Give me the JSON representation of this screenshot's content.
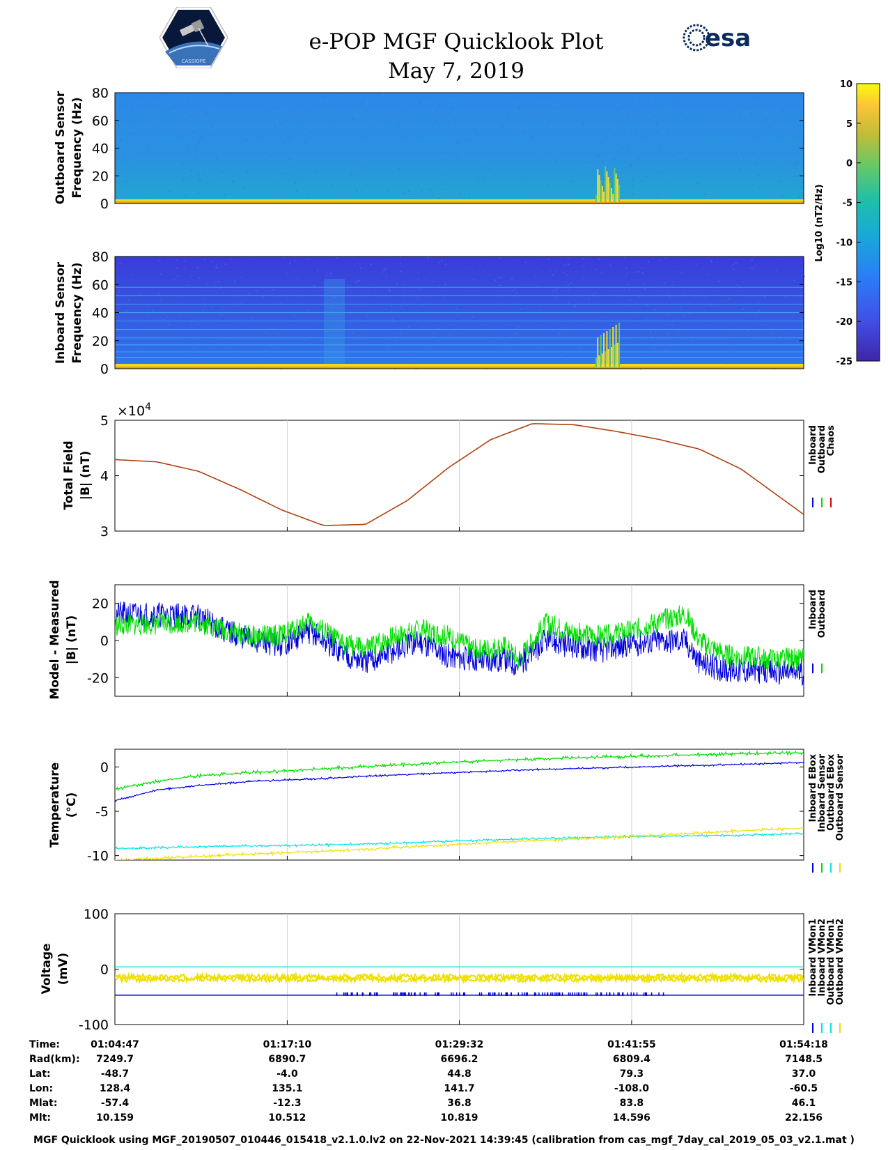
{
  "header": {
    "title": "e-POP MGF Quicklook Plot",
    "date": "May 7, 2019",
    "esa_text": "esa",
    "cassiope_text": "CASSIOPE"
  },
  "colors": {
    "inboard": "#0000dd",
    "outboard": "#00dd00",
    "chaos": "#dd0000",
    "cyan": "#00e5e5",
    "yellow": "#f0e000",
    "total_field_line": "#b04010",
    "grid": "#d0d0d0"
  },
  "panels": {
    "outboard_spec": {
      "ylabel1": "Outboard Sensor",
      "ylabel2": "Frequency (Hz)",
      "yticks": [
        "80",
        "60",
        "40",
        "20",
        "0"
      ],
      "ylim": [
        0,
        80
      ]
    },
    "inboard_spec": {
      "ylabel1": "Inboard Sensor",
      "ylabel2": "Frequency (Hz)",
      "yticks": [
        "80",
        "60",
        "40",
        "20",
        "0"
      ],
      "ylim": [
        0,
        80
      ]
    },
    "colorbar": {
      "label": "Log10 (nT2/Hz)",
      "ticks": [
        "10",
        "5",
        "0",
        "-5",
        "-10",
        "-15",
        "-20",
        "-25"
      ],
      "range": [
        -25,
        10
      ]
    },
    "total_field": {
      "ylabel1": "Total Field",
      "ylabel2": "|B| (nT)",
      "exponent": "×10",
      "exponent_power": "4",
      "yticks": [
        "5",
        "4",
        "3"
      ],
      "ylim": [
        3,
        5
      ],
      "legend": [
        "Inboard",
        "Outboard",
        "Chaos"
      ]
    },
    "model_measured": {
      "ylabel1": "Model - Measured",
      "ylabel2": "|B| (nT)",
      "yticks": [
        "20",
        "0",
        "-20"
      ],
      "ylim": [
        -30,
        30
      ],
      "legend": [
        "Inboard",
        "Outboard"
      ]
    },
    "temperature": {
      "ylabel1": "Temperature",
      "ylabel2": "(°C)",
      "yticks": [
        "0",
        "-5",
        "-10"
      ],
      "ylim": [
        -10.5,
        2
      ],
      "legend": [
        "Inboard EBox",
        "Inboard Sensor",
        "Outboard EBox",
        "Outboard Sensor"
      ]
    },
    "voltage": {
      "ylabel1": "Voltage",
      "ylabel2": "(mV)",
      "yticks": [
        "100",
        "0",
        "-100"
      ],
      "ylim": [
        -100,
        100
      ],
      "legend": [
        "Inboard VMon1",
        "Inboard VMon2",
        "Outboard VMon1",
        "Outboard VMon2"
      ]
    }
  },
  "chart_data": [
    {
      "type": "heatmap",
      "name": "outboard-spectrogram",
      "ylabel": "Outboard Sensor Frequency (Hz)",
      "ylim": [
        0,
        80
      ],
      "colorbar_range": [
        -25,
        10
      ],
      "x_range": [
        "01:04:47",
        "01:54:18"
      ]
    },
    {
      "type": "heatmap",
      "name": "inboard-spectrogram",
      "ylabel": "Inboard Sensor Frequency (Hz)",
      "ylim": [
        0,
        80
      ],
      "colorbar_range": [
        -25,
        10
      ],
      "harmonic_lines_hz": [
        8,
        12,
        17,
        22,
        28,
        34,
        40,
        46,
        52,
        58
      ]
    },
    {
      "type": "line",
      "name": "total-field",
      "ylabel": "Total Field |B| (nT)",
      "ylim": [
        30000,
        50000
      ],
      "t": [
        0,
        3,
        6,
        9,
        12,
        15,
        18,
        21,
        24,
        27,
        30,
        33,
        36,
        39,
        42,
        45,
        49.5
      ],
      "values": [
        42900,
        42500,
        40800,
        37500,
        33800,
        31000,
        31200,
        35500,
        41500,
        46500,
        49400,
        49200,
        48000,
        46600,
        44800,
        41200,
        33000
      ]
    },
    {
      "type": "line",
      "name": "model-minus-measured",
      "ylabel": "Model - Measured |B| (nT)",
      "ylim": [
        -30,
        30
      ],
      "t": [
        0,
        3,
        6,
        8,
        10,
        12,
        14,
        16,
        18,
        20,
        22,
        24,
        26,
        28,
        29,
        31,
        33,
        35,
        37,
        39,
        41,
        42,
        44,
        46,
        47.5,
        49.5
      ],
      "series": [
        {
          "name": "Inboard",
          "values": [
            14,
            14,
            13,
            5,
            0,
            -2,
            5,
            -5,
            -12,
            -6,
            0,
            -8,
            -10,
            -10,
            -13,
            0,
            -3,
            -5,
            -2,
            0,
            0,
            -12,
            -16,
            -16,
            -17,
            -17
          ]
        },
        {
          "name": "Outboard",
          "values": [
            8,
            9,
            10,
            5,
            2,
            3,
            10,
            0,
            -5,
            2,
            6,
            2,
            -5,
            -3,
            -10,
            9,
            4,
            2,
            5,
            10,
            14,
            0,
            -8,
            -9,
            -10,
            -10
          ]
        }
      ]
    },
    {
      "type": "line",
      "name": "temperature",
      "ylabel": "Temperature (°C)",
      "ylim": [
        -10.5,
        2
      ],
      "t": [
        0,
        3,
        6,
        10,
        15,
        20,
        25,
        30,
        35,
        40,
        45,
        49.5
      ],
      "series": [
        {
          "name": "Inboard EBox",
          "values": [
            -2.5,
            -1.6,
            -1.0,
            -0.6,
            -0.2,
            0.2,
            0.6,
            0.9,
            1.1,
            1.3,
            1.5,
            1.6
          ]
        },
        {
          "name": "Inboard Sensor",
          "values": [
            -3.8,
            -2.6,
            -2.1,
            -1.6,
            -1.3,
            -0.9,
            -0.6,
            -0.3,
            -0.1,
            0.1,
            0.3,
            0.5
          ]
        },
        {
          "name": "Outboard EBox",
          "values": [
            -9.2,
            -9.1,
            -9.0,
            -8.9,
            -8.8,
            -8.6,
            -8.3,
            -8.1,
            -7.9,
            -7.8,
            -7.7,
            -7.5
          ]
        },
        {
          "name": "Outboard Sensor",
          "values": [
            -10.5,
            -10.3,
            -10.1,
            -9.8,
            -9.5,
            -9.1,
            -8.7,
            -8.3,
            -8.0,
            -7.6,
            -7.2,
            -6.9
          ]
        }
      ]
    },
    {
      "type": "line",
      "name": "voltage",
      "ylabel": "Voltage (mV)",
      "ylim": [
        -100,
        100
      ],
      "t": [
        0,
        49.5
      ],
      "series": [
        {
          "name": "Inboard VMon1",
          "values": [
            -47,
            -47
          ]
        },
        {
          "name": "Inboard VMon2",
          "values": [
            4,
            4
          ]
        },
        {
          "name": "Outboard VMon1",
          "values": [
            -14,
            -14
          ]
        },
        {
          "name": "Outboard VMon2",
          "values": [
            -18,
            -18
          ]
        }
      ]
    }
  ],
  "table": {
    "row_labels": [
      "Time:",
      "Rad(km):",
      "Lat:",
      "Lon:",
      "Mlat:",
      "Mlt:"
    ],
    "columns": [
      [
        "01:04:47",
        "7249.7",
        "-48.7",
        "128.4",
        "-57.4",
        "10.159"
      ],
      [
        "01:17:10",
        "6890.7",
        "-4.0",
        "135.1",
        "-12.3",
        "10.512"
      ],
      [
        "01:29:32",
        "6696.2",
        "44.8",
        "141.7",
        "36.8",
        "10.819"
      ],
      [
        "01:41:55",
        "6809.4",
        "79.3",
        "-108.0",
        "83.8",
        "14.596"
      ],
      [
        "01:54:18",
        "7148.5",
        "37.0",
        "-60.5",
        "46.1",
        "22.156"
      ]
    ]
  },
  "footer": "MGF Quicklook using MGF_20190507_010446_015418_v2.1.0.lv2 on 22-Nov-2021 14:39:45 (calibration from cas_mgf_7day_cal_2019_05_03_v2.1.mat )"
}
